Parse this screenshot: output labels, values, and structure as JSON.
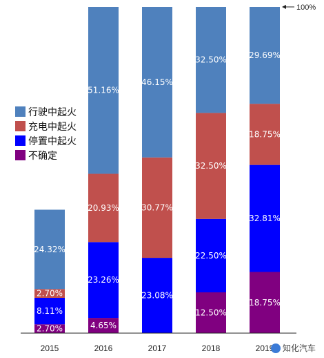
{
  "chart_data": {
    "type": "bar",
    "stacked": true,
    "percent": true,
    "categories": [
      "2015",
      "2016",
      "2017",
      "2018",
      "2019"
    ],
    "scale_reference": "100%",
    "series": [
      {
        "name": "不确定",
        "color": "#800080",
        "values": [
          2.7,
          4.65,
          0,
          12.5,
          18.75
        ],
        "labels": [
          "2.70%",
          "4.65%",
          "",
          "12.50%",
          "18.75%"
        ]
      },
      {
        "name": "停置中起火",
        "color": "#0000ff",
        "values": [
          8.11,
          23.26,
          23.08,
          22.5,
          32.81
        ],
        "labels": [
          "8.11%",
          "23.26%",
          "23.08%",
          "22.50%",
          "32.81%"
        ]
      },
      {
        "name": "充电中起火",
        "color": "#c0504d",
        "values": [
          2.7,
          20.93,
          30.77,
          32.5,
          18.75
        ],
        "labels": [
          "2.70%",
          "20.93%",
          "30.77%",
          "32.50%",
          "18.75%"
        ]
      },
      {
        "name": "行驶中起火",
        "color": "#4f81bd",
        "values": [
          24.32,
          51.16,
          46.15,
          32.5,
          29.69
        ],
        "labels": [
          "24.32%",
          "51.16%",
          "46.15%",
          "32.50%",
          "29.69%"
        ]
      }
    ],
    "legend_order": [
      "行驶中起火",
      "充电中起火",
      "停置中起火",
      "不确定"
    ],
    "legend_position": "left",
    "grid": false
  },
  "watermark": {
    "text": "知化汽车",
    "icon": "zhihua-logo-icon"
  }
}
